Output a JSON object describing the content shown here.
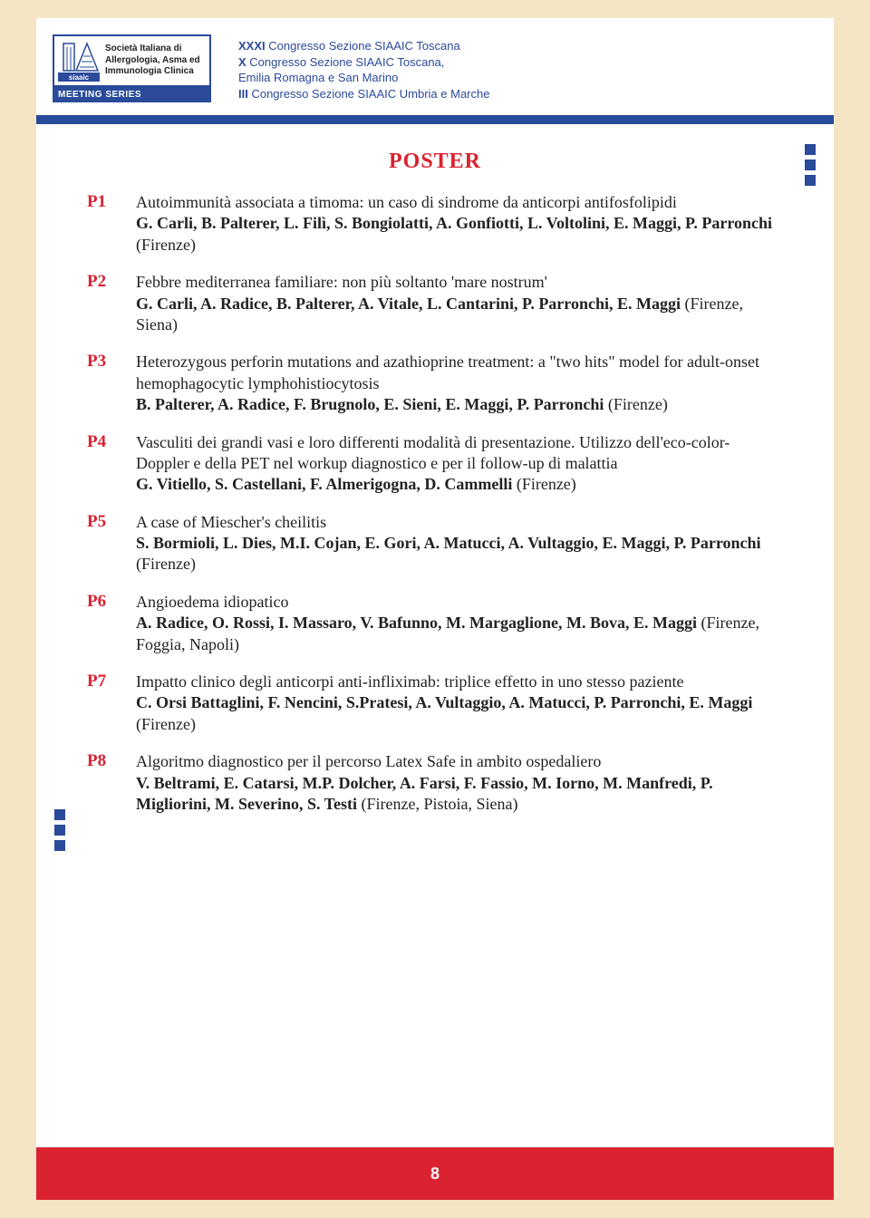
{
  "logo": {
    "society_line1": "Società Italiana di",
    "society_line2": "Allergologia, Asma ed",
    "society_line3": "Immunologia Clinica",
    "siaaic_label": "siaaic",
    "bar_label": "MEETING SERIES"
  },
  "congress": [
    {
      "num": "XXXI",
      "text": " Congresso Sezione SIAAIC Toscana"
    },
    {
      "num": "X",
      "text": " Congresso Sezione SIAAIC Toscana,"
    },
    {
      "num": "",
      "text": "Emilia Romagna e San Marino"
    },
    {
      "num": "III",
      "text": " Congresso Sezione SIAAIC Umbria e Marche"
    }
  ],
  "section_title": "POSTER",
  "posters": [
    {
      "id": "P1",
      "title": "Autoimmunità associata a timoma: un caso di sindrome da anticorpi antifosfolipidi",
      "authors": "G. Carli, B. Palterer, L. Filì, S. Bongiolatti, A. Gonfiotti, L. Voltolini, E. Maggi, P. Parronchi",
      "affil": " (Firenze)"
    },
    {
      "id": "P2",
      "title": "Febbre mediterranea familiare: non più soltanto 'mare nostrum'",
      "authors": "G. Carli, A. Radice, B. Palterer, A. Vitale, L. Cantarini, P. Parronchi, E. Maggi",
      "affil": " (Firenze, Siena)"
    },
    {
      "id": "P3",
      "title": "Heterozygous perforin mutations and azathioprine treatment: a \"two hits\" model for adult-onset hemophagocytic lymphohistiocytosis",
      "authors": "B. Palterer, A. Radice, F. Brugnolo, E. Sieni, E. Maggi, P. Parronchi",
      "affil": " (Firenze)"
    },
    {
      "id": "P4",
      "title": "Vasculiti dei grandi vasi e loro differenti modalità di presentazione. Utilizzo dell'eco-color-Doppler e della PET nel workup diagnostico e per il follow-up di malattia",
      "authors": "G. Vitiello, S. Castellani, F. Almerigogna, D. Cammelli",
      "affil": " (Firenze)"
    },
    {
      "id": "P5",
      "title": "A case of Miescher's cheilitis",
      "authors": "S. Bormioli, L. Dies, M.I. Cojan, E. Gori, A. Matucci, A. Vultaggio, E. Maggi, P. Parronchi",
      "affil": " (Firenze)"
    },
    {
      "id": "P6",
      "title": "Angioedema idiopatico",
      "authors": "A. Radice, O. Rossi, I. Massaro, V. Bafunno, M. Margaglione, M. Bova, E. Maggi",
      "affil": " (Firenze, Foggia, Napoli)"
    },
    {
      "id": "P7",
      "title": "Impatto clinico degli anticorpi anti-infliximab: triplice effetto in uno stesso paziente",
      "authors": "C. Orsi Battaglini, F. Nencini, S.Pratesi, A. Vultaggio, A. Matucci, P. Parronchi, E. Maggi",
      "affil": " (Firenze)"
    },
    {
      "id": "P8",
      "title": "Algoritmo diagnostico per il percorso Latex Safe in ambito ospedaliero",
      "authors": "V. Beltrami, E. Catarsi, M.P. Dolcher, A. Farsi, F. Fassio, M. Iorno, M. Manfredi, P. Migliorini, M. Severino, S. Testi",
      "affil": " (Firenze, Pistoia, Siena)"
    }
  ],
  "page_number": "8",
  "colors": {
    "blue": "#2a4a9a",
    "red": "#da2230",
    "bg": "#f5e5c5",
    "page_bg": "#ffffff"
  }
}
